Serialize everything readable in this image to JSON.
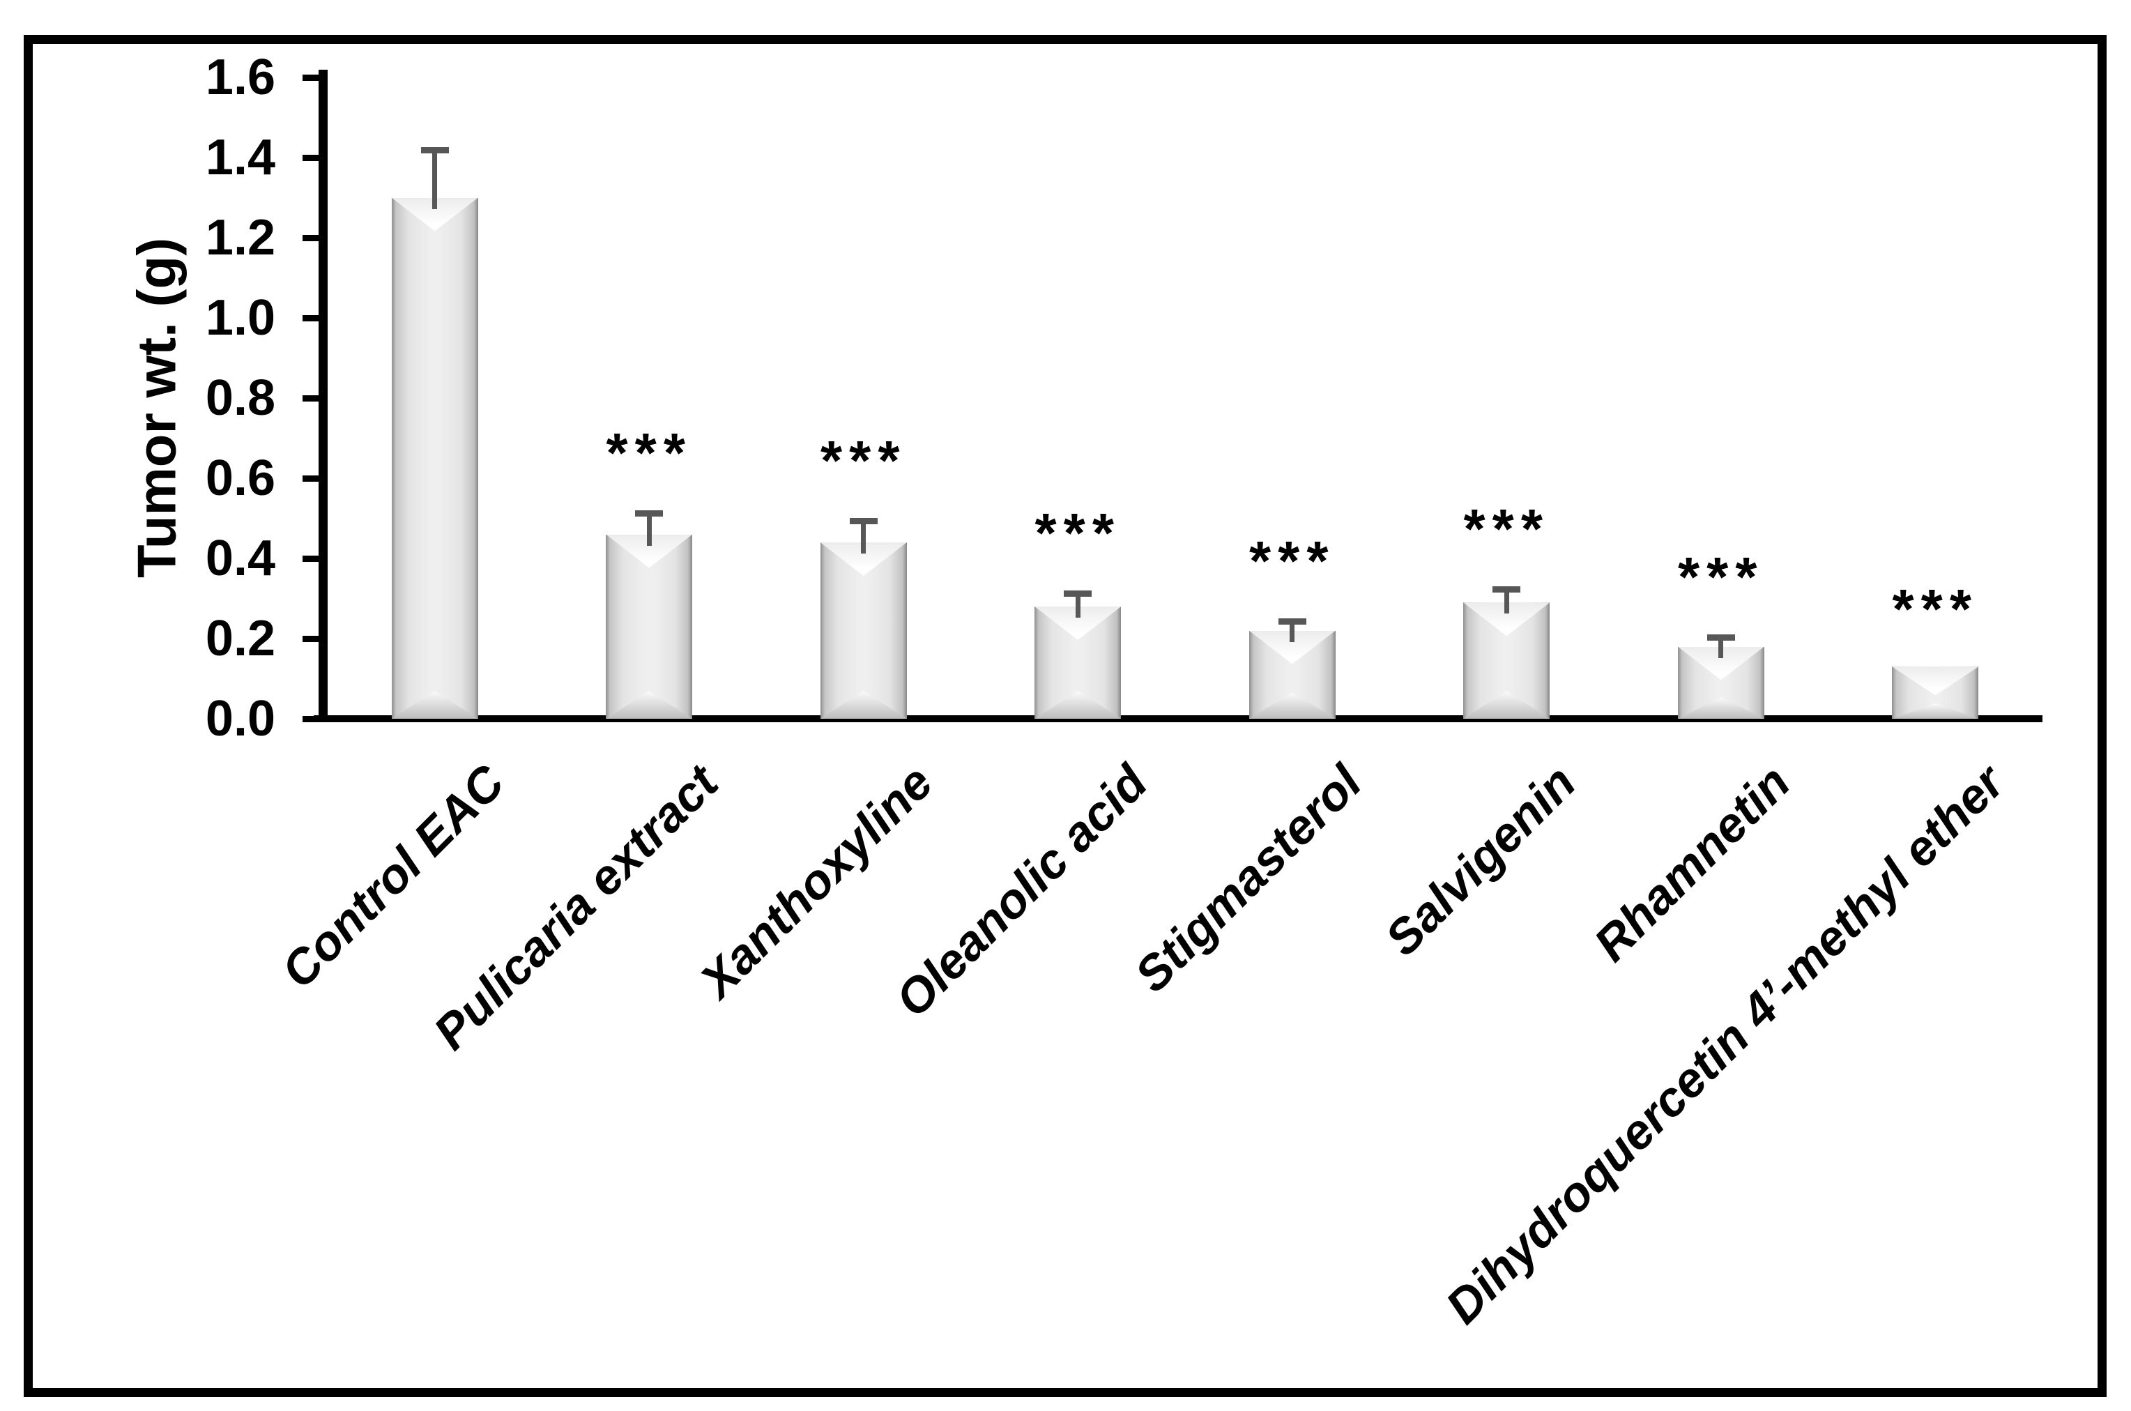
{
  "figure": {
    "background": "#ffffff",
    "border_color": "#000000"
  },
  "chart_data": {
    "type": "bar",
    "title": "",
    "ylabel": "Tumor wt. (g)",
    "xlabel": "",
    "ylim": [
      0.0,
      1.6
    ],
    "ytick_step": 0.2,
    "yticks": [
      "0.0",
      "0.2",
      "0.4",
      "0.6",
      "0.8",
      "1.0",
      "1.2",
      "1.4",
      "1.6"
    ],
    "grid": false,
    "legend": false,
    "categories": [
      "Control EAC",
      "Pulicaria extract",
      "Xanthoxyline",
      "Oleanolic acid",
      "Stigmasterol",
      "Salvigenin",
      "Rhamnetin",
      "Dihydroquercetin 4’-methyl ether"
    ],
    "values": [
      1.3,
      0.46,
      0.44,
      0.28,
      0.22,
      0.29,
      0.18,
      0.13
    ],
    "errors_upper": [
      0.11,
      0.045,
      0.045,
      0.025,
      0.015,
      0.025,
      0.015,
      0
    ],
    "significance": [
      "",
      "***",
      "***",
      "***",
      "***",
      "***",
      "***",
      "***"
    ],
    "colors": {
      "bar_edge": "#8f8f8f",
      "bar_mid": "#efefef",
      "bar_highlight": "#ffffff",
      "error_bar": "#575757",
      "axis": "#000000",
      "text": "#000000"
    }
  }
}
